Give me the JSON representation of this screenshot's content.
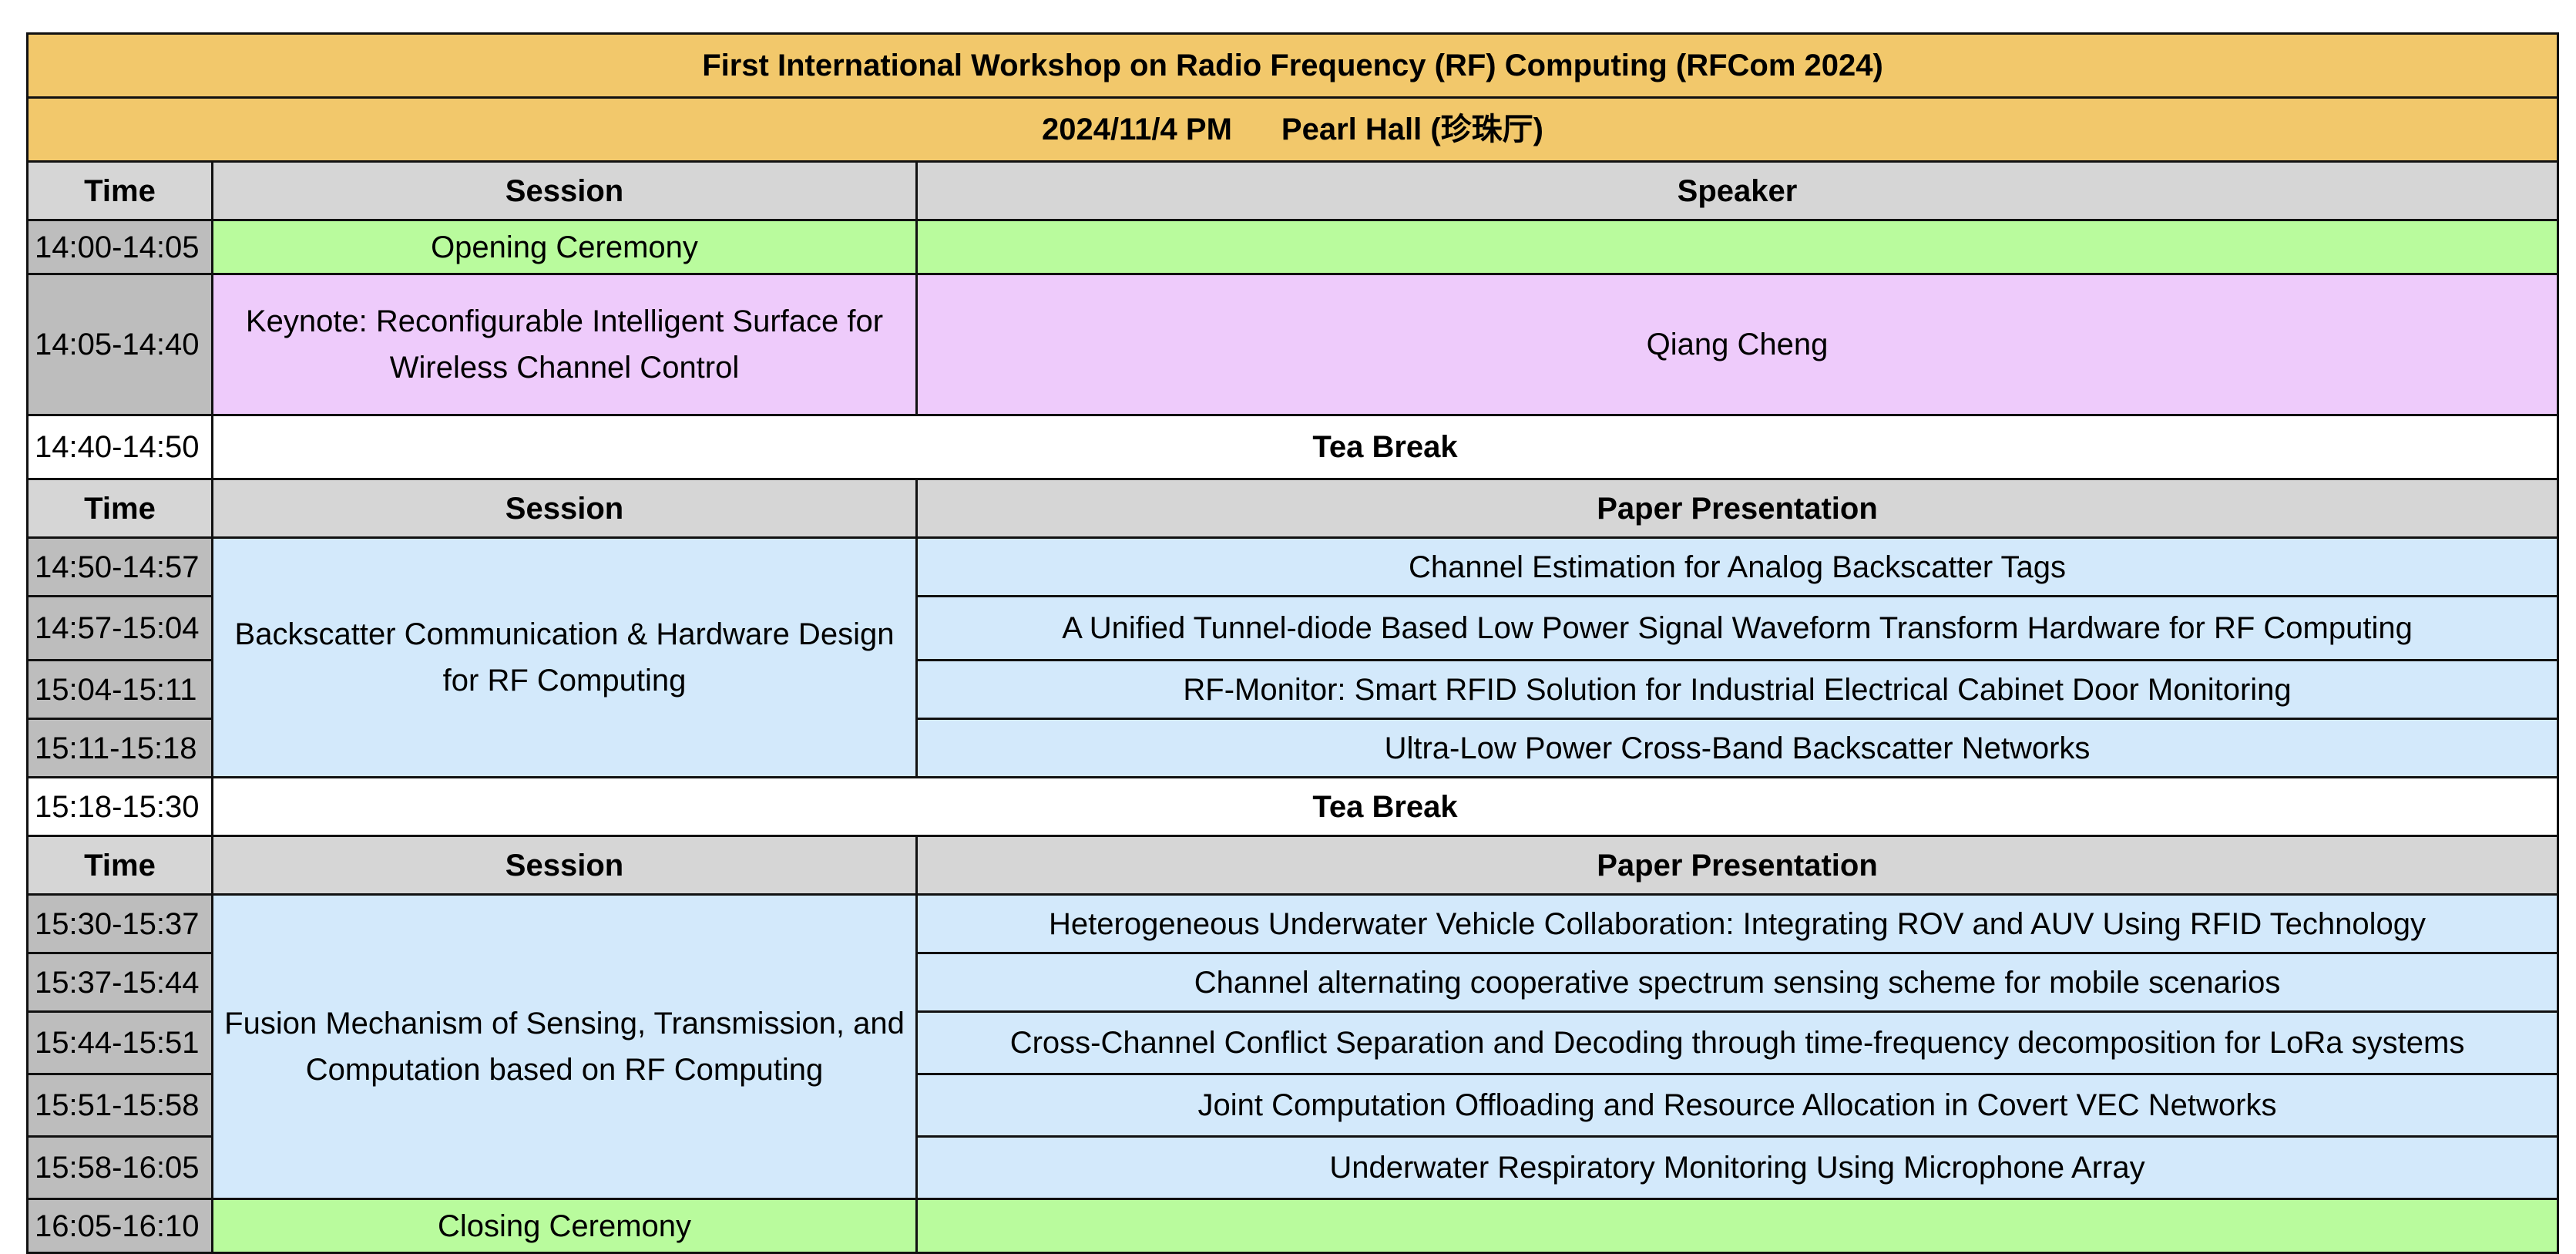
{
  "header": {
    "title": "First International Workshop on Radio Frequency (RF) Computing (RFCom 2024)",
    "date": "2024/11/4 PM",
    "venue": "Pearl Hall (珍珠厅)"
  },
  "columns": {
    "time": "Time",
    "session": "Session",
    "speaker": "Speaker",
    "paper": "Paper Presentation"
  },
  "opening": {
    "time": "14:00-14:05",
    "label": "Opening Ceremony"
  },
  "keynote": {
    "time": "14:05-14:40",
    "title": "Keynote: Reconfigurable Intelligent Surface for Wireless Channel Control",
    "speaker": "Qiang Cheng"
  },
  "break1": {
    "time": "14:40-14:50",
    "label": "Tea Break"
  },
  "session1": {
    "name": "Backscatter Communication & Hardware Design for RF Computing",
    "talks": [
      {
        "time": "14:50-14:57",
        "title": "Channel Estimation for Analog Backscatter Tags"
      },
      {
        "time": "14:57-15:04",
        "title": "A Unified Tunnel-diode Based Low Power Signal Waveform Transform Hardware for RF Computing"
      },
      {
        "time": "15:04-15:11",
        "title": "RF-Monitor: Smart RFID Solution for Industrial Electrical Cabinet Door Monitoring"
      },
      {
        "time": "15:11-15:18",
        "title": "Ultra-Low Power Cross-Band Backscatter Networks"
      }
    ]
  },
  "break2": {
    "time": "15:18-15:30",
    "label": "Tea Break"
  },
  "session2": {
    "name": "Fusion Mechanism of Sensing, Transmission, and Computation based on RF Computing",
    "talks": [
      {
        "time": "15:30-15:37",
        "title": "Heterogeneous Underwater Vehicle Collaboration: Integrating ROV and AUV Using RFID Technology"
      },
      {
        "time": "15:37-15:44",
        "title": "Channel alternating cooperative spectrum sensing scheme for mobile scenarios"
      },
      {
        "time": "15:44-15:51",
        "title": "Cross-Channel Conflict Separation and Decoding through time-frequency decomposition for LoRa systems"
      },
      {
        "time": "15:51-15:58",
        "title": "Joint Computation Offloading and Resource Allocation in Covert VEC Networks"
      },
      {
        "time": "15:58-16:05",
        "title": "Underwater Respiratory Monitoring Using Microphone Array"
      }
    ]
  },
  "closing": {
    "time": "16:05-16:10",
    "label": "Closing Ceremony"
  },
  "colors": {
    "title_bg": "#f2c86b",
    "header_bg": "#d6d6d6",
    "time_bg": "#bdbdbd",
    "ceremony_bg": "#b9fb9d",
    "keynote_bg": "#eecbfb",
    "session_bg": "#d3e9fb"
  }
}
